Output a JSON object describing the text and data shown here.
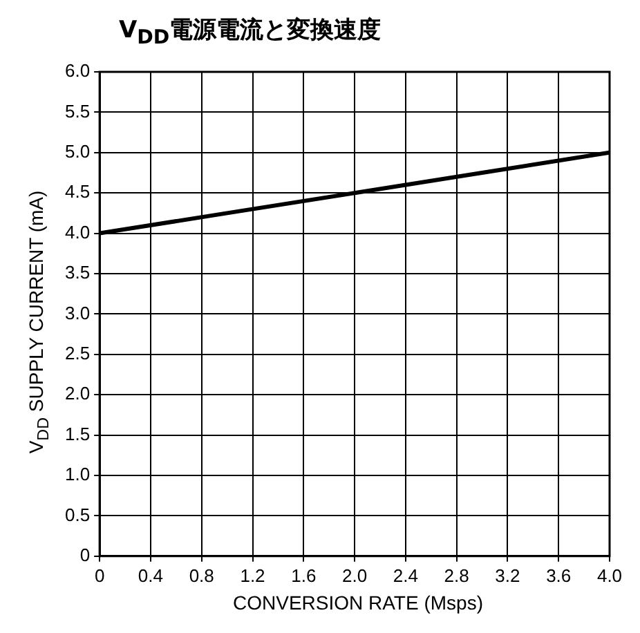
{
  "chart_data": {
    "type": "line",
    "title": "V$_{DD}$電源電流と変換速度",
    "xlabel": "CONVERSION RATE (Msps)",
    "ylabel": "V$_{DD}$ SUPPLY CURRENT (mA)",
    "x": [
      0,
      1,
      2,
      3,
      4
    ],
    "series": [
      {
        "color": "#000000",
        "values": [
          4.0,
          4.25,
          4.5,
          4.75,
          5.0
        ]
      }
    ],
    "xlim": [
      0,
      4
    ],
    "xticks": [
      0,
      {
        "value": 0.4,
        "label": "0.4"
      },
      {
        "value": 0.8,
        "label": "0.8"
      },
      {
        "value": 1.2,
        "label": "1.2"
      },
      {
        "value": 1.6,
        "label": "1.6"
      },
      {
        "value": 2,
        "label": "2.0"
      },
      {
        "value": 2.4,
        "label": "2.4"
      },
      {
        "value": 2.8,
        "label": "2.8"
      },
      {
        "value": 3.2,
        "label": "3.2"
      },
      {
        "value": 3.6,
        "label": "3.6"
      },
      {
        "value": 4,
        "label": "4.0"
      }
    ],
    "ylim": [
      0,
      6
    ],
    "yticks": [
      0,
      {
        "value": 0.5,
        "label": "0.5"
      },
      {
        "value": 1,
        "label": "1.0"
      },
      {
        "value": 1.5,
        "label": "1.5"
      },
      {
        "value": 2,
        "label": "2.0"
      },
      {
        "value": 2.5,
        "label": "2.5"
      },
      {
        "value": 3,
        "label": "3.0"
      },
      {
        "value": 3.5,
        "label": "3.5"
      },
      {
        "value": 4,
        "label": "4.0"
      },
      {
        "value": 4.5,
        "label": "4.5"
      },
      {
        "value": 5,
        "label": "5.0"
      },
      {
        "value": 5.5,
        "label": "5.5"
      },
      {
        "value": 6,
        "label": "6.0"
      }
    ],
    "grid": true,
    "marker": "none",
    "line_style": "solid"
  }
}
